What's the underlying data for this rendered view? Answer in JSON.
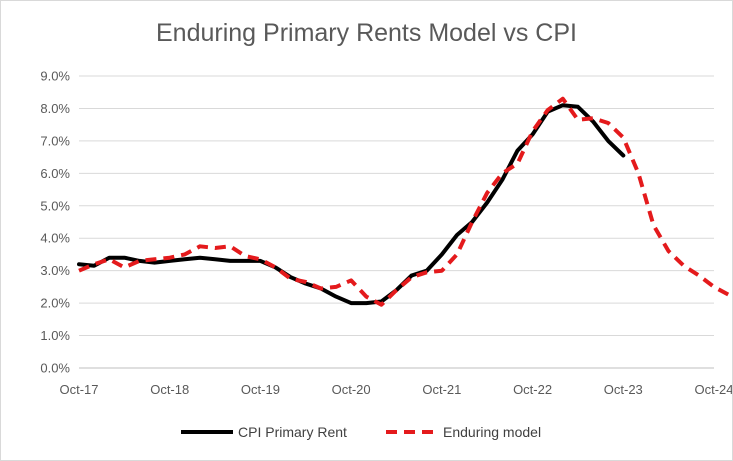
{
  "chart_data": {
    "type": "line",
    "title": "Enduring Primary Rents Model vs CPI",
    "xlabel": "",
    "ylabel": "",
    "x_ticks": [
      "Oct-17",
      "Oct-18",
      "Oct-19",
      "Oct-20",
      "Oct-21",
      "Oct-22",
      "Oct-23",
      "Oct-24"
    ],
    "y_ticks": [
      "0.0%",
      "1.0%",
      "2.0%",
      "3.0%",
      "4.0%",
      "5.0%",
      "6.0%",
      "7.0%",
      "8.0%",
      "9.0%"
    ],
    "ylim": [
      0,
      9
    ],
    "xlim": [
      "2017-10",
      "2024-10"
    ],
    "grid": true,
    "legend_position": "bottom",
    "series": [
      {
        "name": "CPI Primary Rent",
        "color": "#000000",
        "style": "solid",
        "points": [
          [
            "2017-10",
            3.2
          ],
          [
            "2017-12",
            3.15
          ],
          [
            "2018-02",
            3.4
          ],
          [
            "2018-04",
            3.4
          ],
          [
            "2018-06",
            3.3
          ],
          [
            "2018-08",
            3.25
          ],
          [
            "2018-10",
            3.3
          ],
          [
            "2018-12",
            3.35
          ],
          [
            "2019-02",
            3.4
          ],
          [
            "2019-04",
            3.35
          ],
          [
            "2019-06",
            3.3
          ],
          [
            "2019-08",
            3.3
          ],
          [
            "2019-10",
            3.3
          ],
          [
            "2019-12",
            3.1
          ],
          [
            "2020-02",
            2.8
          ],
          [
            "2020-04",
            2.6
          ],
          [
            "2020-06",
            2.45
          ],
          [
            "2020-08",
            2.2
          ],
          [
            "2020-10",
            2.0
          ],
          [
            "2020-12",
            2.0
          ],
          [
            "2021-02",
            2.05
          ],
          [
            "2021-04",
            2.4
          ],
          [
            "2021-06",
            2.85
          ],
          [
            "2021-08",
            3.0
          ],
          [
            "2021-10",
            3.5
          ],
          [
            "2021-12",
            4.1
          ],
          [
            "2022-02",
            4.5
          ],
          [
            "2022-04",
            5.1
          ],
          [
            "2022-06",
            5.8
          ],
          [
            "2022-08",
            6.7
          ],
          [
            "2022-10",
            7.2
          ],
          [
            "2022-12",
            7.9
          ],
          [
            "2023-02",
            8.1
          ],
          [
            "2023-04",
            8.05
          ],
          [
            "2023-06",
            7.6
          ],
          [
            "2023-08",
            7.0
          ],
          [
            "2023-10",
            6.55
          ]
        ]
      },
      {
        "name": "Enduring model",
        "color": "#e41a1c",
        "style": "dashed",
        "points": [
          [
            "2017-10",
            3.0
          ],
          [
            "2017-12",
            3.2
          ],
          [
            "2018-02",
            3.35
          ],
          [
            "2018-04",
            3.1
          ],
          [
            "2018-06",
            3.3
          ],
          [
            "2018-08",
            3.35
          ],
          [
            "2018-10",
            3.4
          ],
          [
            "2018-12",
            3.5
          ],
          [
            "2019-02",
            3.75
          ],
          [
            "2019-04",
            3.7
          ],
          [
            "2019-06",
            3.75
          ],
          [
            "2019-08",
            3.45
          ],
          [
            "2019-10",
            3.35
          ],
          [
            "2019-12",
            3.1
          ],
          [
            "2020-02",
            2.75
          ],
          [
            "2020-04",
            2.65
          ],
          [
            "2020-06",
            2.45
          ],
          [
            "2020-08",
            2.5
          ],
          [
            "2020-10",
            2.7
          ],
          [
            "2020-12",
            2.2
          ],
          [
            "2021-02",
            1.95
          ],
          [
            "2021-04",
            2.4
          ],
          [
            "2021-06",
            2.8
          ],
          [
            "2021-08",
            2.95
          ],
          [
            "2021-10",
            3.0
          ],
          [
            "2021-12",
            3.5
          ],
          [
            "2022-02",
            4.5
          ],
          [
            "2022-04",
            5.4
          ],
          [
            "2022-06",
            6.0
          ],
          [
            "2022-08",
            6.3
          ],
          [
            "2022-10",
            7.3
          ],
          [
            "2022-12",
            7.95
          ],
          [
            "2023-02",
            8.3
          ],
          [
            "2023-04",
            7.65
          ],
          [
            "2023-06",
            7.7
          ],
          [
            "2023-08",
            7.55
          ],
          [
            "2023-10",
            7.1
          ],
          [
            "2023-12",
            6.0
          ],
          [
            "2024-02",
            4.4
          ],
          [
            "2024-04",
            3.6
          ],
          [
            "2024-06",
            3.15
          ],
          [
            "2024-08",
            2.85
          ],
          [
            "2024-10",
            2.5
          ],
          [
            "2024-12",
            2.25
          ]
        ]
      }
    ]
  }
}
